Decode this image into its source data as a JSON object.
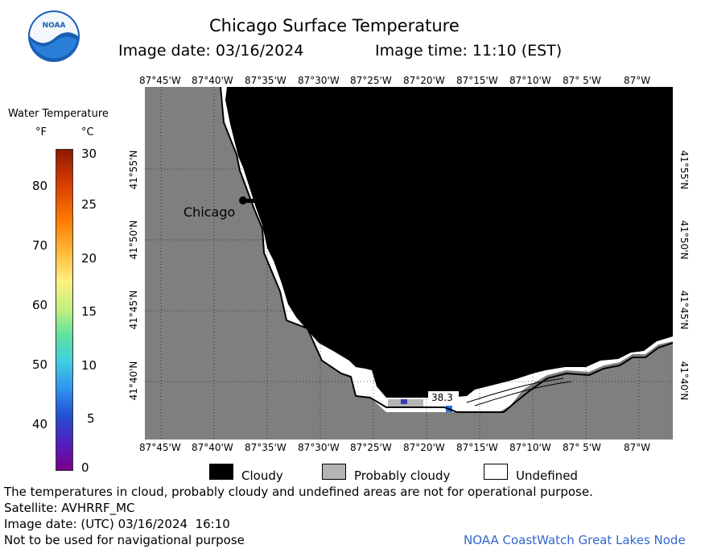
{
  "header": {
    "logo_text": "NOAA",
    "title": "Chicago Surface Temperature",
    "image_date": "Image date: 03/16/2024",
    "image_time": "Image time: 11:10 (EST)"
  },
  "colorbar": {
    "title": "Water Temperature",
    "unit_f": "°F",
    "unit_c": "°C",
    "f_ticks": [
      "80",
      "70",
      "60",
      "50",
      "40"
    ],
    "c_ticks": [
      "30",
      "25",
      "20",
      "15",
      "10",
      "5",
      "0"
    ]
  },
  "map": {
    "lon_labels": [
      "87°45'W",
      "87°40'W",
      "87°35'W",
      "87°30'W",
      "87°25'W",
      "87°20'W",
      "87°15'W",
      "87°10'W",
      "87° 5'W",
      "87°W"
    ],
    "lat_labels": [
      "41°55'N",
      "41°50'N",
      "41°45'N",
      "41°40'N"
    ],
    "city_label": "Chicago",
    "temp_label": "38.3",
    "colors": {
      "land": "#7f7f7f",
      "cloud": "#000000",
      "undefined": "#ffffff",
      "probably_cloudy": "#b4b4b4"
    }
  },
  "legend": {
    "cloudy": "Cloudy",
    "probably_cloudy": "Probably cloudy",
    "undefined": "Undefined"
  },
  "footer": {
    "disclaimer": "The temperatures in cloud, probably cloudy and undefined areas are not for operational purpose.",
    "satellite": "Satellite: AVHRRF_MC",
    "utc_date": "Image date: (UTC) 03/16/2024  16:10",
    "nav_warning": "Not to be used for navigational purpose",
    "credit": "NOAA CoastWatch Great Lakes Node"
  }
}
